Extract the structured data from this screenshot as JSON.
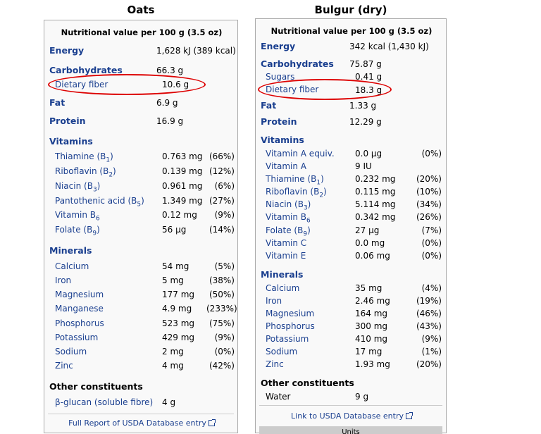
{
  "oats": {
    "title": "Oats",
    "header": "Nutritional value per 100 g (3.5 oz)",
    "energy_label": "Energy",
    "energy_value": "1,628 kJ (389 kcal)",
    "carbs_label": "Carbohydrates",
    "carbs_value": "66.3 g",
    "fiber_label": "Dietary fiber",
    "fiber_value": "10.6 g",
    "fat_label": "Fat",
    "fat_value": "6.9 g",
    "protein_label": "Protein",
    "protein_value": "16.9 g",
    "vitamins_label": "Vitamins",
    "vitamins": [
      {
        "name": "Thiamine (B1)",
        "value": "0.763 mg",
        "pct": "(66%)"
      },
      {
        "name": "Riboflavin (B2)",
        "value": "0.139 mg",
        "pct": "(12%)"
      },
      {
        "name": "Niacin (B3)",
        "value": "0.961 mg",
        "pct": "(6%)"
      },
      {
        "name": "Pantothenic acid (B5)",
        "value": "1.349 mg",
        "pct": "(27%)"
      },
      {
        "name": "Vitamin B6",
        "value": "0.12 mg",
        "pct": "(9%)"
      },
      {
        "name": "Folate (B9)",
        "value": "56 μg",
        "pct": "(14%)"
      }
    ],
    "minerals_label": "Minerals",
    "minerals": [
      {
        "name": "Calcium",
        "value": "54 mg",
        "pct": "(5%)"
      },
      {
        "name": "Iron",
        "value": "5 mg",
        "pct": "(38%)"
      },
      {
        "name": "Magnesium",
        "value": "177 mg",
        "pct": "(50%)"
      },
      {
        "name": "Manganese",
        "value": "4.9 mg",
        "pct": "(233%)"
      },
      {
        "name": "Phosphorus",
        "value": "523 mg",
        "pct": "(75%)"
      },
      {
        "name": "Potassium",
        "value": "429 mg",
        "pct": "(9%)"
      },
      {
        "name": "Sodium",
        "value": "2 mg",
        "pct": "(0%)"
      },
      {
        "name": "Zinc",
        "value": "4 mg",
        "pct": "(42%)"
      }
    ],
    "other_label": "Other constituents",
    "other": [
      {
        "name": "β-glucan (soluble fibre)",
        "value": "4 g"
      }
    ],
    "link": "Full Report of USDA Database entry"
  },
  "bulgur": {
    "title": "Bulgur (dry)",
    "header": "Nutritional value per 100 g (3.5 oz)",
    "energy_label": "Energy",
    "energy_value": "342 kcal (1,430 kJ)",
    "carbs_label": "Carbohydrates",
    "carbs_value": "75.87 g",
    "sugars_label": "Sugars",
    "sugars_value": "0.41 g",
    "fiber_label": "Dietary fiber",
    "fiber_value": "18.3 g",
    "fat_label": "Fat",
    "fat_value": "1.33 g",
    "protein_label": "Protein",
    "protein_value": "12.29 g",
    "vitamins_label": "Vitamins",
    "vitamins": [
      {
        "name": "Vitamin A equiv.",
        "value": "0.0 μg",
        "pct": "(0%)"
      },
      {
        "name": "Vitamin A",
        "value": "9 IU",
        "pct": ""
      },
      {
        "name": "Thiamine (B1)",
        "value": "0.232 mg",
        "pct": "(20%)"
      },
      {
        "name": "Riboflavin (B2)",
        "value": "0.115 mg",
        "pct": "(10%)"
      },
      {
        "name": "Niacin (B3)",
        "value": "5.114 mg",
        "pct": "(34%)"
      },
      {
        "name": "Vitamin B6",
        "value": "0.342 mg",
        "pct": "(26%)"
      },
      {
        "name": "Folate (B9)",
        "value": "27 μg",
        "pct": "(7%)"
      },
      {
        "name": "Vitamin C",
        "value": "0.0 mg",
        "pct": "(0%)"
      },
      {
        "name": "Vitamin E",
        "value": "0.06 mg",
        "pct": "(0%)"
      }
    ],
    "minerals_label": "Minerals",
    "minerals": [
      {
        "name": "Calcium",
        "value": "35 mg",
        "pct": "(4%)"
      },
      {
        "name": "Iron",
        "value": "2.46 mg",
        "pct": "(19%)"
      },
      {
        "name": "Magnesium",
        "value": "164 mg",
        "pct": "(46%)"
      },
      {
        "name": "Phosphorus",
        "value": "300 mg",
        "pct": "(43%)"
      },
      {
        "name": "Potassium",
        "value": "410 mg",
        "pct": "(9%)"
      },
      {
        "name": "Sodium",
        "value": "17 mg",
        "pct": "(1%)"
      },
      {
        "name": "Zinc",
        "value": "1.93 mg",
        "pct": "(20%)"
      }
    ],
    "other_label": "Other constituents",
    "other": [
      {
        "name": "Water",
        "value": "9 g"
      }
    ],
    "link": "Link to USDA Database entry",
    "units_label": "Units"
  }
}
